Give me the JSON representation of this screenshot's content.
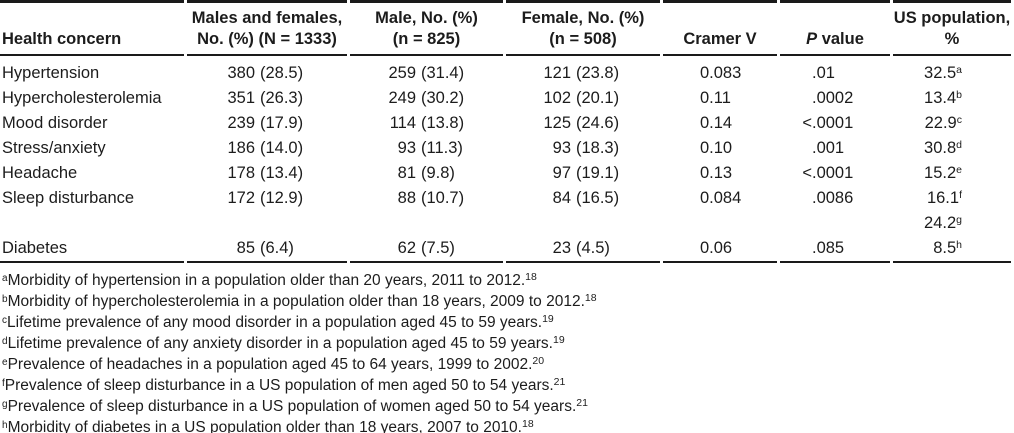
{
  "page": {
    "background": "#ffffff",
    "text_color": "#1c1c1c",
    "rule_color": "#1a1a1a"
  },
  "table": {
    "header": {
      "health_concern": "Health concern",
      "males_females": "Males and females,\nNo. (%) (N = 1333)",
      "male": "Male, No. (%)\n(n = 825)",
      "female": "Female, No. (%)\n(n = 508)",
      "cramer_v": "Cramer V",
      "p_italic": "P",
      "p_rest": " value",
      "us_population": "US population,\n%"
    },
    "rows": [
      {
        "concern": "Hypertension",
        "both_n": "380",
        "both_pct": "(28.5)",
        "male_n": "259",
        "male_pct": "(31.4)",
        "female_n": "121",
        "female_pct": "(23.8)",
        "cramer": "0.083",
        "p_pre": "",
        "p_val": ".01",
        "us_val": "32.5",
        "us_note": "a"
      },
      {
        "concern": "Hypercholesterolemia",
        "both_n": "351",
        "both_pct": "(26.3)",
        "male_n": "249",
        "male_pct": "(30.2)",
        "female_n": "102",
        "female_pct": "(20.1)",
        "cramer": "0.11",
        "p_pre": "",
        "p_val": ".0002",
        "us_val": "13.4",
        "us_note": "b"
      },
      {
        "concern": "Mood disorder",
        "both_n": "239",
        "both_pct": "(17.9)",
        "male_n": "114",
        "male_pct": "(13.8)",
        "female_n": "125",
        "female_pct": "(24.6)",
        "cramer": "0.14",
        "p_pre": "<",
        "p_val": ".0001",
        "us_val": "22.9",
        "us_note": "c"
      },
      {
        "concern": "Stress/anxiety",
        "both_n": "186",
        "both_pct": "(14.0)",
        "male_n": "93",
        "male_pct": "(11.3)",
        "female_n": "93",
        "female_pct": "(18.3)",
        "cramer": "0.10",
        "p_pre": "",
        "p_val": ".001",
        "us_val": "30.8",
        "us_note": "d"
      },
      {
        "concern": "Headache",
        "both_n": "178",
        "both_pct": "(13.4)",
        "male_n": "81",
        "male_pct": "(9.8)",
        "female_n": "97",
        "female_pct": "(19.1)",
        "cramer": "0.13",
        "p_pre": "<",
        "p_val": ".0001",
        "us_val": "15.2",
        "us_note": "e"
      },
      {
        "concern": "Sleep disturbance",
        "both_n": "172",
        "both_pct": "(12.9)",
        "male_n": "88",
        "male_pct": "(10.7)",
        "female_n": "84",
        "female_pct": "(16.5)",
        "cramer": "0.084",
        "p_pre": "",
        "p_val": ".0086",
        "us_val": "16.1",
        "us_note": "f"
      },
      {
        "concern": "",
        "both_n": "",
        "both_pct": "",
        "male_n": "",
        "male_pct": "",
        "female_n": "",
        "female_pct": "",
        "cramer": "",
        "p_pre": "",
        "p_val": "",
        "us_val": "24.2",
        "us_note": "g"
      },
      {
        "concern": "Diabetes",
        "both_n": "85",
        "both_pct": "(6.4)",
        "male_n": "62",
        "male_pct": "(7.5)",
        "female_n": "23",
        "female_pct": "(4.5)",
        "cramer": "0.06",
        "p_pre": "",
        "p_val": ".085",
        "us_val": "8.5",
        "us_note": "h"
      }
    ],
    "footnotes": [
      {
        "marker": "a",
        "text": "Morbidity of hypertension in a population older than 20 years, 2011 to 2012.",
        "ref": "18"
      },
      {
        "marker": "b",
        "text": "Morbidity of hypercholesterolemia in a population older than 18 years, 2009 to 2012.",
        "ref": "18"
      },
      {
        "marker": "c",
        "text": "Lifetime prevalence of any mood disorder in a population aged 45 to 59 years.",
        "ref": "19"
      },
      {
        "marker": "d",
        "text": "Lifetime prevalence of any anxiety disorder in a population aged 45 to 59 years.",
        "ref": "19"
      },
      {
        "marker": "e",
        "text": "Prevalence of headaches in a population aged 45 to 64 years, 1999 to 2002.",
        "ref": "20"
      },
      {
        "marker": "f",
        "text": "Prevalence of sleep disturbance in a US population of men aged 50 to 54 years.",
        "ref": "21"
      },
      {
        "marker": "g",
        "text": "Prevalence of sleep disturbance in a US population of women aged 50 to 54 years.",
        "ref": "21"
      },
      {
        "marker": "h",
        "text": "Morbidity of diabetes in a US population older than 18 years, 2007 to 2010.",
        "ref": "18"
      }
    ]
  }
}
